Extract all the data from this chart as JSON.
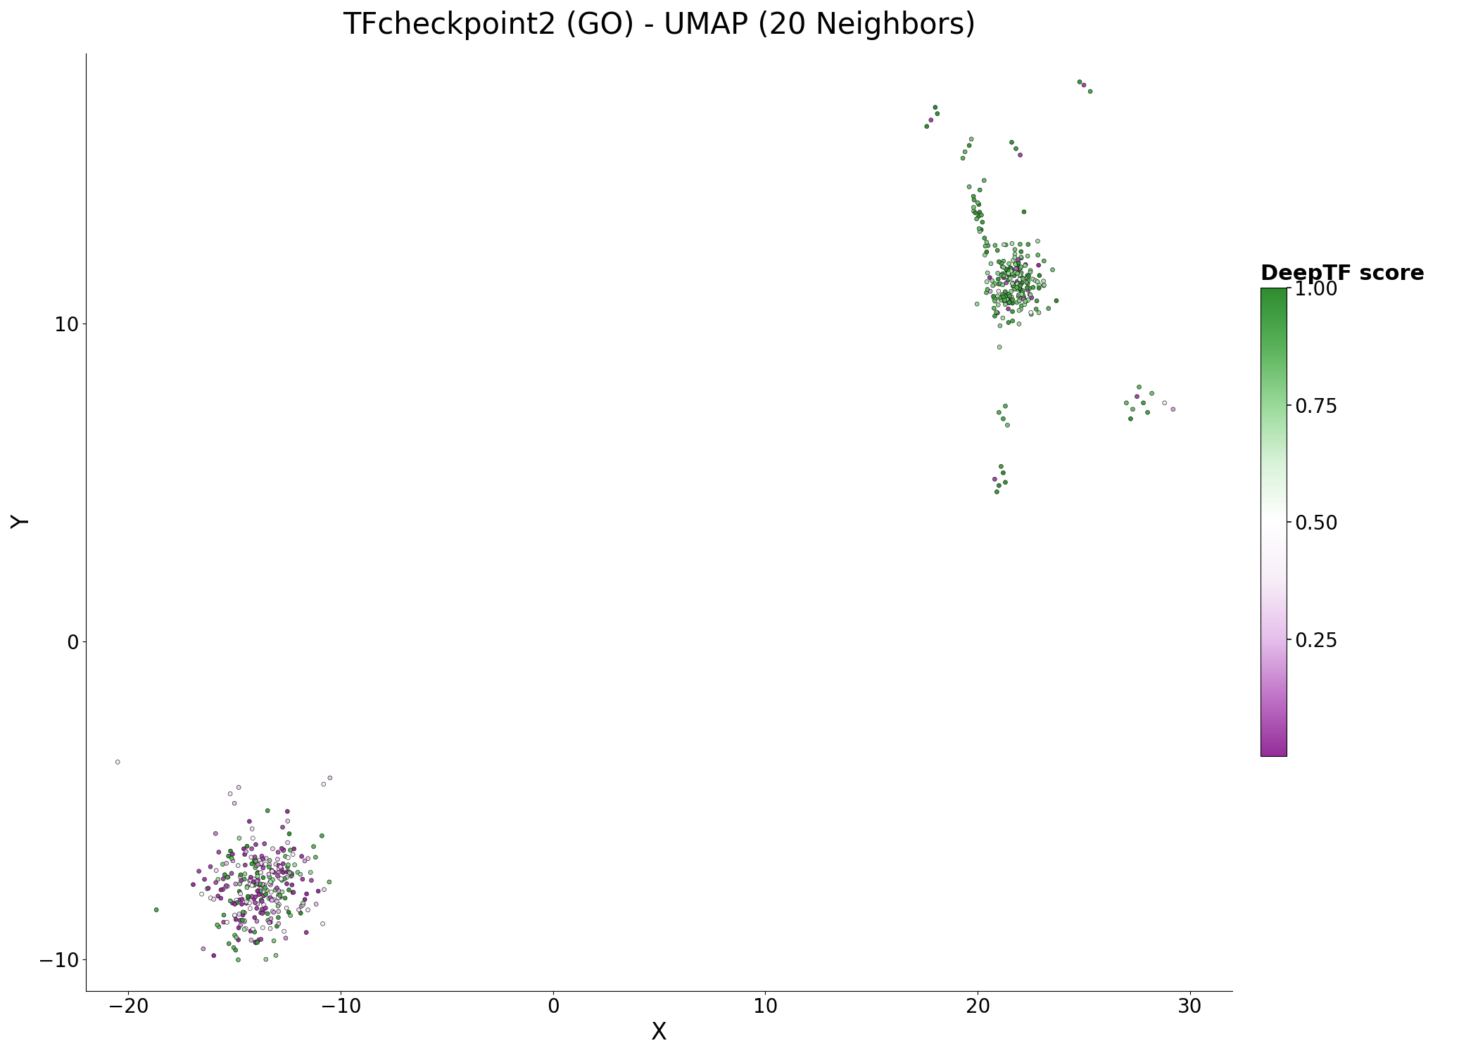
{
  "title": "TFcheckpoint2 (GO) - UMAP (20 Neighbors)",
  "xlabel": "X",
  "ylabel": "Y",
  "xlim": [
    -22,
    32
  ],
  "ylim": [
    -11,
    18.5
  ],
  "xticks": [
    -20,
    -10,
    0,
    10,
    20,
    30
  ],
  "yticks": [
    -10,
    0,
    10
  ],
  "colorbar_label": "DeepTF score",
  "colorbar_ticks": [
    0.25,
    0.5,
    0.75,
    1.0
  ],
  "colorbar_ticklabels": [
    "0.25",
    "0.50",
    "0.75",
    "1.00"
  ],
  "background_color": "#ffffff",
  "title_fontsize": 30,
  "axis_label_fontsize": 24,
  "tick_fontsize": 20,
  "colorbar_label_fontsize": 22,
  "colorbar_tick_fontsize": 20,
  "point_size": 18,
  "point_edgewidth": 0.4
}
